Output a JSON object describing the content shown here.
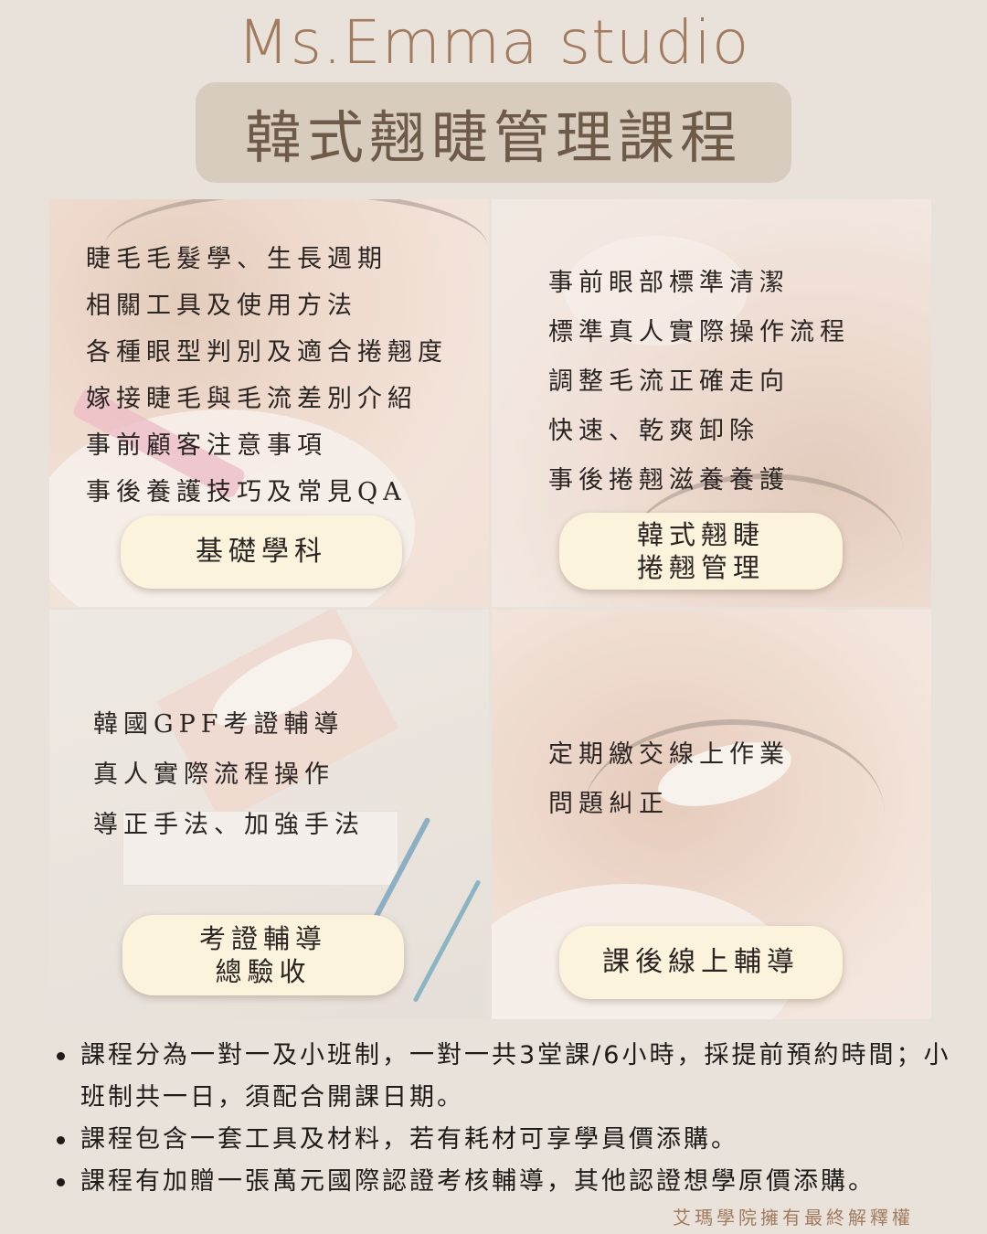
{
  "brand": "Ms.Emma studio",
  "title": "韓式翹睫管理課程",
  "panels": [
    {
      "items": [
        "睫毛毛髮學、生長週期",
        "相關工具及使用方法",
        "各種眼型判別及適合捲翹度",
        "嫁接睫毛與毛流差別介紹",
        "事前顧客注意事項",
        "事後養護技巧及常見QA"
      ],
      "button": [
        "基礎學科"
      ]
    },
    {
      "items": [
        "事前眼部標準清潔",
        "標準真人實際操作流程",
        "調整毛流正確走向",
        "快速、乾爽卸除",
        "事後捲翹滋養養護"
      ],
      "button": [
        "韓式翹睫",
        "捲翹管理"
      ]
    },
    {
      "items": [
        "韓國GPF考證輔導",
        "真人實際流程操作",
        "導正手法、加強手法"
      ],
      "button": [
        "考證輔導",
        "總驗收"
      ]
    },
    {
      "items": [
        "定期繳交線上作業",
        "問題糾正"
      ],
      "button": [
        "課後線上輔導"
      ]
    }
  ],
  "notes": [
    "課程分為一對一及小班制，一對一共3堂課/6小時，採提前預約時間；小班制共一日，須配合開課日期。",
    "課程包含一套工具及材料，若有耗材可享學員價添購。",
    "課程有加贈一張萬元國際認證考核輔導，其他認證想學原價添購。"
  ],
  "rights": "艾瑪學院擁有最終解釋權"
}
